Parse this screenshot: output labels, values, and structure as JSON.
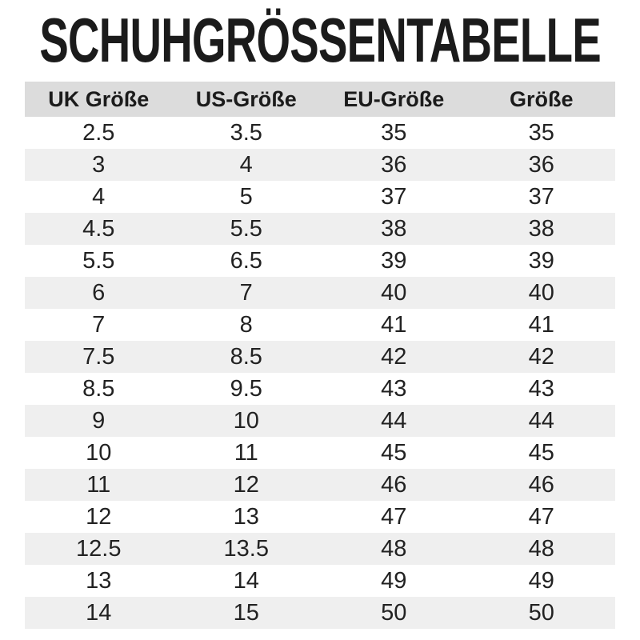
{
  "page": {
    "title": "SCHUHGRÖSSENTABELLE"
  },
  "colors": {
    "background": "#ffffff",
    "header_row_bg": "#dcdcdc",
    "alt_row_bg": "#efefef",
    "text": "#1b1b1b"
  },
  "table": {
    "columns": [
      "UK Größe",
      "US-Größe",
      "EU-Größe",
      "Größe"
    ],
    "rows": [
      [
        "2.5",
        "3.5",
        "35",
        "35"
      ],
      [
        "3",
        "4",
        "36",
        "36"
      ],
      [
        "4",
        "5",
        "37",
        "37"
      ],
      [
        "4.5",
        "5.5",
        "38",
        "38"
      ],
      [
        "5.5",
        "6.5",
        "39",
        "39"
      ],
      [
        "6",
        "7",
        "40",
        "40"
      ],
      [
        "7",
        "8",
        "41",
        "41"
      ],
      [
        "7.5",
        "8.5",
        "42",
        "42"
      ],
      [
        "8.5",
        "9.5",
        "43",
        "43"
      ],
      [
        "9",
        "10",
        "44",
        "44"
      ],
      [
        "10",
        "11",
        "45",
        "45"
      ],
      [
        "11",
        "12",
        "46",
        "46"
      ],
      [
        "12",
        "13",
        "47",
        "47"
      ],
      [
        "12.5",
        "13.5",
        "48",
        "48"
      ],
      [
        "13",
        "14",
        "49",
        "49"
      ],
      [
        "14",
        "15",
        "50",
        "50"
      ]
    ]
  },
  "chart_data": {
    "type": "table",
    "title": "SCHUHGRÖSSENTABELLE",
    "columns": [
      "UK Größe",
      "US-Größe",
      "EU-Größe",
      "Größe"
    ],
    "rows": [
      [
        "2.5",
        "3.5",
        "35",
        "35"
      ],
      [
        "3",
        "4",
        "36",
        "36"
      ],
      [
        "4",
        "5",
        "37",
        "37"
      ],
      [
        "4.5",
        "5.5",
        "38",
        "38"
      ],
      [
        "5.5",
        "6.5",
        "39",
        "39"
      ],
      [
        "6",
        "7",
        "40",
        "40"
      ],
      [
        "7",
        "8",
        "41",
        "41"
      ],
      [
        "7.5",
        "8.5",
        "42",
        "42"
      ],
      [
        "8.5",
        "9.5",
        "43",
        "43"
      ],
      [
        "9",
        "10",
        "44",
        "44"
      ],
      [
        "10",
        "11",
        "45",
        "45"
      ],
      [
        "11",
        "12",
        "46",
        "46"
      ],
      [
        "12",
        "13",
        "47",
        "47"
      ],
      [
        "12.5",
        "13.5",
        "48",
        "48"
      ],
      [
        "13",
        "14",
        "49",
        "49"
      ],
      [
        "14",
        "15",
        "50",
        "50"
      ]
    ],
    "layout": {
      "header_background": "#dcdcdc",
      "zebra_striping": true,
      "alt_row_background": "#efefef",
      "gridlines": false
    }
  }
}
